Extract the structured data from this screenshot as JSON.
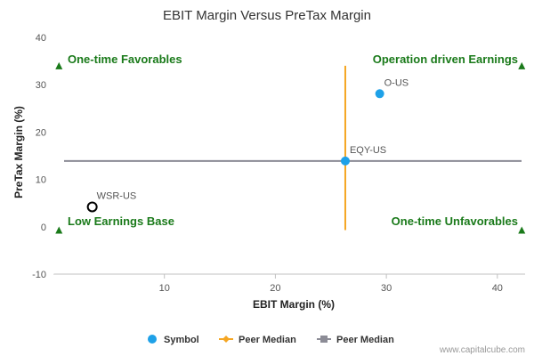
{
  "chart_data": {
    "type": "scatter",
    "title": "EBIT Margin Versus PreTax Margin",
    "xlabel": "EBIT Margin (%)",
    "ylabel": "PreTax Margin (%)",
    "xlim": [
      0,
      42.5
    ],
    "ylim": [
      -10,
      40
    ],
    "x_ticks": [
      "10",
      "20",
      "30",
      "40"
    ],
    "y_ticks": [
      "-10",
      "0",
      "10",
      "20",
      "30",
      "40"
    ],
    "grid": false,
    "points": [
      {
        "label": "O-US",
        "x": 29.4,
        "y": 28.1,
        "style": "filled",
        "color": "#1ea1e8"
      },
      {
        "label": "EQY-US",
        "x": 26.3,
        "y": 13.9,
        "style": "filled",
        "color": "#1ea1e8"
      },
      {
        "label": "WSR-US",
        "x": 3.5,
        "y": 4.2,
        "style": "hollow",
        "color": "#000000"
      }
    ],
    "peer_median_x": 26.3,
    "peer_median_x_range": [
      -0.7,
      34
    ],
    "peer_median_y": 13.9,
    "quadrant_labels": {
      "top_left": "One-time Favorables",
      "top_right": "Operation driven Earnings",
      "bottom_left": "Low Earnings Base",
      "bottom_right": "One-time Unfavorables"
    },
    "quadrant_markers": [
      {
        "x": 0.5,
        "y": 34
      },
      {
        "x": 42.2,
        "y": 34
      },
      {
        "x": 0.5,
        "y": -0.7
      },
      {
        "x": 42.2,
        "y": -0.7
      }
    ],
    "legend": {
      "placement": "bottom",
      "items": [
        {
          "label": "Symbol",
          "color": "#1ea1e8",
          "marker": "circle"
        },
        {
          "label": "Peer Median",
          "color": "#f5a623",
          "marker": "diamond-line"
        },
        {
          "label": "Peer Median",
          "color": "#8c8c96",
          "marker": "square-line"
        }
      ]
    },
    "colors": {
      "vertical_median": "#f5a623",
      "horizontal_median": "#8c8c96",
      "quadrant_text": "#1a7a1a",
      "axis": "#c0c0c0"
    }
  },
  "credit": "www.capitalcube.com"
}
